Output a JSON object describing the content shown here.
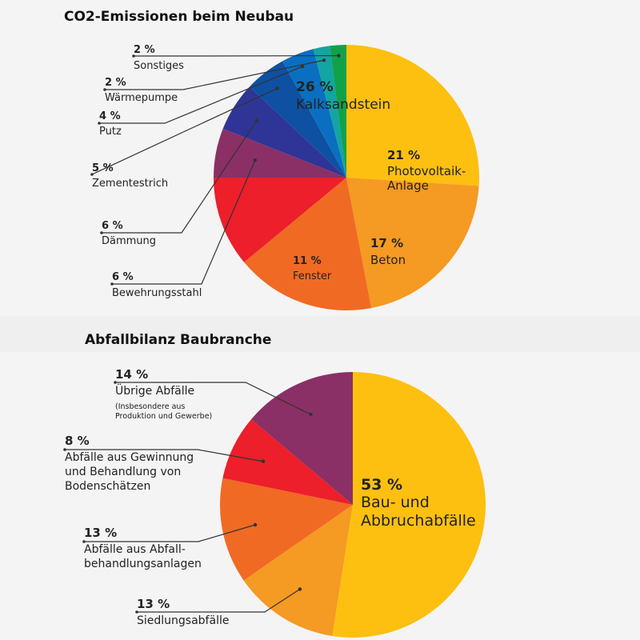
{
  "charts": [
    {
      "title": "CO2-Emissionen beim Neubau",
      "colors": [
        "#fdc010",
        "#f59a22",
        "#f06a24",
        "#ec1f2a",
        "#8a3066",
        "#2f3596",
        "#0e50a1",
        "#0a6fc0",
        "#13a4a4",
        "#12a14b"
      ],
      "chart_data": {
        "type": "pie",
        "slices": [
          {
            "label": [
              "Kalksandstein"
            ],
            "value": 26,
            "value_label": "26 %"
          },
          {
            "label": [
              "Photovoltaik-",
              "Anlage"
            ],
            "value": 21,
            "value_label": "21 %"
          },
          {
            "label": [
              "Beton"
            ],
            "value": 17,
            "value_label": "17 %"
          },
          {
            "label": [
              "Fenster"
            ],
            "value": 11,
            "value_label": "11 %"
          },
          {
            "label": [
              "Bewehrungsstahl"
            ],
            "value": 6,
            "value_label": "6 %"
          },
          {
            "label": [
              "Dämmung"
            ],
            "value": 6,
            "value_label": "6 %"
          },
          {
            "label": [
              "Zementestrich"
            ],
            "value": 5,
            "value_label": "5 %"
          },
          {
            "label": [
              "Putz"
            ],
            "value": 4,
            "value_label": "4 %"
          },
          {
            "label": [
              "Wärmepumpe"
            ],
            "value": 2,
            "value_label": "2 %"
          },
          {
            "label": [
              "Sonstiges"
            ],
            "value": 2,
            "value_label": "2 %"
          }
        ]
      }
    },
    {
      "title": "Abfallbilanz Baubranche",
      "colors": [
        "#fdc010",
        "#f59a22",
        "#f06a24",
        "#ec1f2a",
        "#8a3066"
      ],
      "chart_data": {
        "type": "pie",
        "slices": [
          {
            "label": [
              "Bau- und",
              "Abbruchabfälle"
            ],
            "value": 53,
            "value_label": "53 %"
          },
          {
            "label": [
              "Siedlungsabfälle"
            ],
            "value": 13,
            "value_label": "13 %"
          },
          {
            "label": [
              "Abfälle aus Abfall-",
              "behandlungsanlagen"
            ],
            "value": 13,
            "value_label": "13 %"
          },
          {
            "label": [
              "Abfälle aus Gewinnung",
              "und Behandlung von",
              "Bodenschätzen"
            ],
            "value": 8,
            "value_label": "8 %"
          },
          {
            "label": [
              "Übrige Abfälle"
            ],
            "note": [
              "(Insbesondere aus",
              "Produktion und Gewerbe)"
            ],
            "value": 14,
            "value_label": "14 %"
          }
        ]
      }
    }
  ]
}
